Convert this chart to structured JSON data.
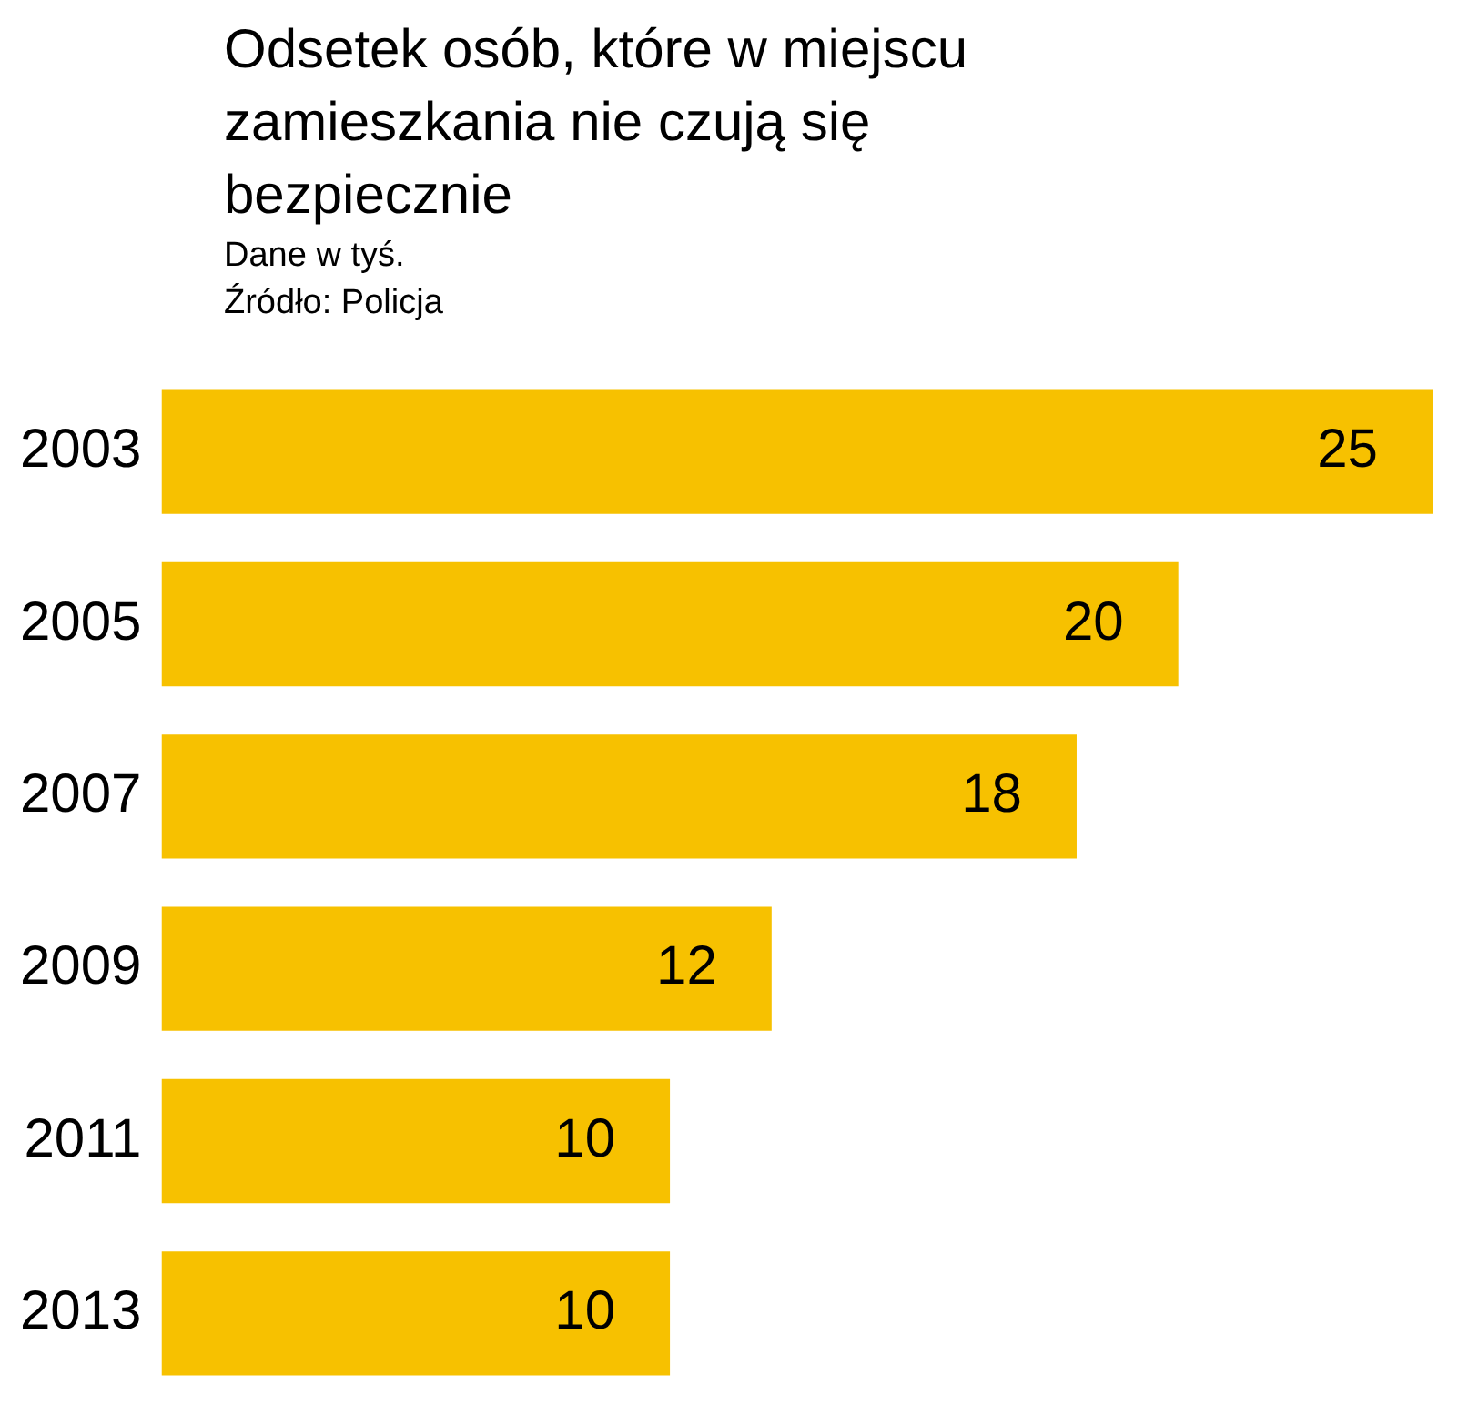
{
  "chart_data": {
    "type": "bar",
    "orientation": "horizontal",
    "title": "Odsetek osób, które w miejscu zamieszkania nie czują się bezpiecznie",
    "subtitle": "Dane w tyś.",
    "annotations": [
      "Źródło: Policja"
    ],
    "categories": [
      "2003",
      "2005",
      "2007",
      "2009",
      "2011",
      "2013"
    ],
    "values": [
      25,
      20,
      18,
      12,
      10,
      10
    ],
    "color": "#f7c100",
    "data_labels": true,
    "legend": false
  }
}
